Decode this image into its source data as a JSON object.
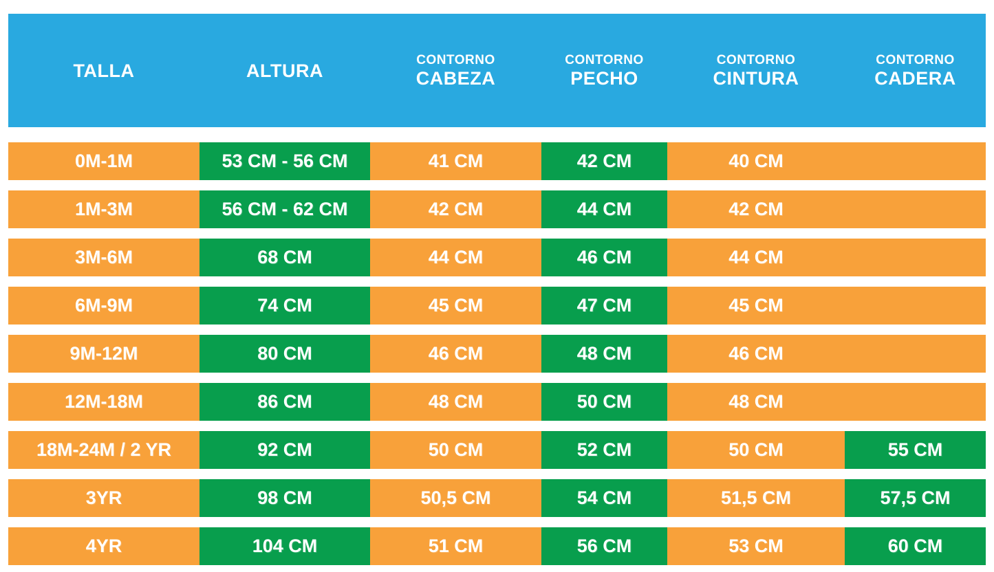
{
  "colors": {
    "header_bg": "#29a9e0",
    "row_bg": "#f8a13a",
    "highlight_bg": "#089e4d",
    "text": "#ffffff",
    "page_bg": "#ffffff"
  },
  "table": {
    "columns": [
      {
        "label_top": "",
        "label": "TALLA"
      },
      {
        "label_top": "",
        "label": "ALTURA"
      },
      {
        "label_top": "CONTORNO",
        "label": "CABEZA"
      },
      {
        "label_top": "CONTORNO",
        "label": "PECHO"
      },
      {
        "label_top": "CONTORNO",
        "label": "CINTURA"
      },
      {
        "label_top": "CONTORNO",
        "label": "CADERA"
      }
    ],
    "rows": [
      {
        "cells": [
          {
            "text": "0M-1M",
            "highlight": false
          },
          {
            "text": "53 CM - 56 CM",
            "highlight": true
          },
          {
            "text": "41 CM",
            "highlight": false
          },
          {
            "text": "42 CM",
            "highlight": true
          },
          {
            "text": "40 CM",
            "highlight": false
          },
          {
            "text": "",
            "highlight": false
          }
        ]
      },
      {
        "cells": [
          {
            "text": "1M-3M",
            "highlight": false
          },
          {
            "text": "56 CM - 62 CM",
            "highlight": true
          },
          {
            "text": "42 CM",
            "highlight": false
          },
          {
            "text": "44 CM",
            "highlight": true
          },
          {
            "text": "42 CM",
            "highlight": false
          },
          {
            "text": "",
            "highlight": false
          }
        ]
      },
      {
        "cells": [
          {
            "text": "3M-6M",
            "highlight": false
          },
          {
            "text": "68 CM",
            "highlight": true
          },
          {
            "text": "44 CM",
            "highlight": false
          },
          {
            "text": "46 CM",
            "highlight": true
          },
          {
            "text": "44 CM",
            "highlight": false
          },
          {
            "text": "",
            "highlight": false
          }
        ]
      },
      {
        "cells": [
          {
            "text": "6M-9M",
            "highlight": false
          },
          {
            "text": "74 CM",
            "highlight": true
          },
          {
            "text": "45 CM",
            "highlight": false
          },
          {
            "text": "47 CM",
            "highlight": true
          },
          {
            "text": "45 CM",
            "highlight": false
          },
          {
            "text": "",
            "highlight": false
          }
        ]
      },
      {
        "cells": [
          {
            "text": "9M-12M",
            "highlight": false
          },
          {
            "text": "80 CM",
            "highlight": true
          },
          {
            "text": "46 CM",
            "highlight": false
          },
          {
            "text": "48 CM",
            "highlight": true
          },
          {
            "text": "46 CM",
            "highlight": false
          },
          {
            "text": "",
            "highlight": false
          }
        ]
      },
      {
        "cells": [
          {
            "text": "12M-18M",
            "highlight": false
          },
          {
            "text": "86 CM",
            "highlight": true
          },
          {
            "text": "48 CM",
            "highlight": false
          },
          {
            "text": "50 CM",
            "highlight": true
          },
          {
            "text": "48 CM",
            "highlight": false
          },
          {
            "text": "",
            "highlight": false
          }
        ]
      },
      {
        "cells": [
          {
            "text": "18M-24M / 2 YR",
            "highlight": false
          },
          {
            "text": "92 CM",
            "highlight": true
          },
          {
            "text": "50 CM",
            "highlight": false
          },
          {
            "text": "52 CM",
            "highlight": true
          },
          {
            "text": "50 CM",
            "highlight": false
          },
          {
            "text": "55 CM",
            "highlight": true
          }
        ]
      },
      {
        "cells": [
          {
            "text": "3YR",
            "highlight": false
          },
          {
            "text": "98 CM",
            "highlight": true
          },
          {
            "text": "50,5 CM",
            "highlight": false
          },
          {
            "text": "54 CM",
            "highlight": true
          },
          {
            "text": "51,5 CM",
            "highlight": false
          },
          {
            "text": "57,5 CM",
            "highlight": true
          }
        ]
      },
      {
        "cells": [
          {
            "text": "4YR",
            "highlight": false
          },
          {
            "text": "104 CM",
            "highlight": true
          },
          {
            "text": "51 CM",
            "highlight": false
          },
          {
            "text": "56 CM",
            "highlight": true
          },
          {
            "text": "53 CM",
            "highlight": false
          },
          {
            "text": "60 CM",
            "highlight": true
          }
        ]
      }
    ]
  },
  "chart_data": {
    "type": "table",
    "title": "Tabla de tallas infantil (size chart)",
    "columns": [
      "TALLA",
      "ALTURA",
      "CONTORNO CABEZA",
      "CONTORNO PECHO",
      "CONTORNO CINTURA",
      "CONTORNO CADERA"
    ],
    "rows": [
      [
        "0M-1M",
        "53 CM - 56 CM",
        "41 CM",
        "42 CM",
        "40 CM",
        ""
      ],
      [
        "1M-3M",
        "56 CM - 62 CM",
        "42 CM",
        "44 CM",
        "42 CM",
        ""
      ],
      [
        "3M-6M",
        "68 CM",
        "44 CM",
        "46 CM",
        "44 CM",
        ""
      ],
      [
        "6M-9M",
        "74 CM",
        "45 CM",
        "47 CM",
        "45 CM",
        ""
      ],
      [
        "9M-12M",
        "80 CM",
        "46 CM",
        "48 CM",
        "46 CM",
        ""
      ],
      [
        "12M-18M",
        "86 CM",
        "48 CM",
        "50 CM",
        "48 CM",
        ""
      ],
      [
        "18M-24M / 2 YR",
        "92 CM",
        "50 CM",
        "52 CM",
        "50 CM",
        "55 CM"
      ],
      [
        "3YR",
        "98 CM",
        "50,5 CM",
        "54 CM",
        "51,5 CM",
        "57,5 CM"
      ],
      [
        "4YR",
        "104 CM",
        "51 CM",
        "56 CM",
        "53 CM",
        "60 CM"
      ]
    ],
    "highlighted_columns_note": "ALTURA and CONTORNO PECHO cells are green-highlighted in all rows; CONTORNO CADERA cells are green-highlighted in the last 3 rows; all other cells are orange",
    "legend_position": "none",
    "grid": false
  }
}
